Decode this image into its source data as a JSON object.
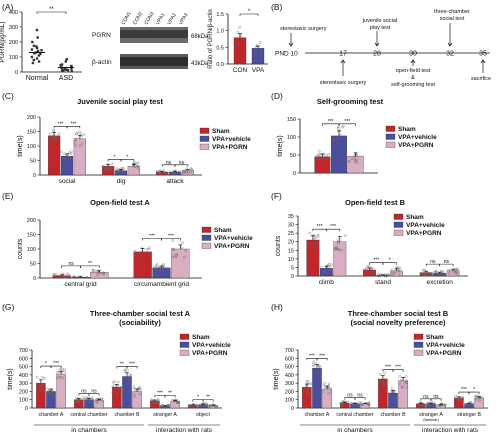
{
  "panels": {
    "A": {
      "letter": "(A)",
      "left_ylabel": "PGRN(pg/mL)",
      "right_ylabel": "Ratio of PGRN/β-actin",
      "blot_lanes": [
        "CON1",
        "CON2",
        "CON3",
        "VPA1",
        "VPA2",
        "VPA3"
      ],
      "blot_rows": [
        {
          "label": "PGRN",
          "kda": "68kDa"
        },
        {
          "label": "β-actin",
          "kda": "43kDa"
        }
      ]
    },
    "B": {
      "letter": "(B)",
      "pnd_label": "PND 10",
      "days": [
        "17",
        "28",
        "30",
        "32",
        "35"
      ],
      "events_top": [
        "stereotaxic surgery",
        "juvenile social play test",
        "three-chamber social test"
      ],
      "events_bottom": [
        "stereotaxic surgery",
        "open-field test & self-grooming test",
        "sacrifice"
      ]
    },
    "C": {
      "letter": "(C)"
    },
    "D": {
      "letter": "(D)"
    },
    "E": {
      "letter": "(E)"
    },
    "F": {
      "letter": "(F)"
    },
    "G": {
      "letter": "(G)",
      "group_labels": [
        "in chambers",
        "interaction with rats"
      ]
    },
    "H": {
      "letter": "(H)",
      "group_labels": [
        "in chambers",
        "interaction with rats"
      ]
    }
  },
  "colors": {
    "sham": "#c0272d",
    "vehicle": "#4b4e9c",
    "pgrn": "#d9aec3",
    "normal": "#333333",
    "asd": "#333333",
    "con": "#c0272d",
    "vpa": "#4b4e9c"
  },
  "chart_data": [
    {
      "panel": "A-left",
      "type": "scatter",
      "categories": [
        "Normal",
        "ASD"
      ],
      "series": [
        {
          "name": "Normal",
          "mean": 130,
          "values": [
            280,
            230,
            200,
            175,
            170,
            160,
            150,
            145,
            140,
            130,
            125,
            120,
            110,
            100,
            90,
            80,
            70,
            60
          ]
        },
        {
          "name": "ASD",
          "mean": 30,
          "values": [
            85,
            70,
            50,
            45,
            40,
            35,
            30,
            25,
            22,
            20,
            18,
            15,
            12,
            10,
            8,
            5
          ]
        }
      ],
      "yticks": [
        0,
        100,
        200,
        300,
        400
      ],
      "ylim": [
        0,
        400
      ],
      "ylabel": "PGRN(pg/mL)",
      "significance": [
        {
          "from": 0,
          "to": 1,
          "label": "**"
        }
      ]
    },
    {
      "panel": "A-right",
      "type": "bar",
      "categories": [
        "CON",
        "VPA"
      ],
      "values": [
        0.79,
        0.47
      ],
      "errors": [
        0.12,
        0.07
      ],
      "points": [
        [
          1.1,
          0.95,
          0.85,
          0.6,
          0.55
        ],
        [
          0.65,
          0.55,
          0.5,
          0.4,
          0.35,
          0.28
        ]
      ],
      "yticks": [
        0,
        0.5,
        1.0,
        1.5
      ],
      "ylim": [
        0,
        1.5
      ],
      "ylabel": "Ratio of PGRN/β-actin",
      "significance": [
        {
          "from": 0,
          "to": 1,
          "label": "*"
        }
      ]
    },
    {
      "panel": "C",
      "type": "bar",
      "title": "Juvenile social play test",
      "ylabel": "time(s)",
      "categories": [
        "social",
        "dig",
        "attack"
      ],
      "series": [
        {
          "name": "Sham",
          "values": [
            135,
            30,
            10
          ],
          "errors": [
            12,
            6,
            3
          ]
        },
        {
          "name": "VPA+vehicle",
          "values": [
            65,
            15,
            10
          ],
          "errors": [
            8,
            4,
            3
          ]
        },
        {
          "name": "VPA+PGRN",
          "values": [
            125,
            30,
            15
          ],
          "errors": [
            12,
            6,
            4
          ]
        }
      ],
      "yticks": [
        0,
        50,
        100,
        150,
        200
      ],
      "ylim": [
        0,
        200
      ],
      "legend": "top-right",
      "significance": [
        {
          "cat": 0,
          "from": 0,
          "to": 1,
          "label": "***"
        },
        {
          "cat": 0,
          "from": 1,
          "to": 2,
          "label": "***"
        },
        {
          "cat": 1,
          "from": 0,
          "to": 1,
          "label": "*"
        },
        {
          "cat": 1,
          "from": 1,
          "to": 2,
          "label": "*"
        },
        {
          "cat": 2,
          "from": 0,
          "to": 1,
          "label": "ns"
        },
        {
          "cat": 2,
          "from": 1,
          "to": 2,
          "label": "ns"
        }
      ]
    },
    {
      "panel": "D",
      "type": "bar",
      "title": "Self-grooming test",
      "ylabel": "time(s)",
      "categories": [
        ""
      ],
      "series": [
        {
          "name": "Sham",
          "values": [
            45
          ],
          "errors": [
            8
          ]
        },
        {
          "name": "VPA+vehicle",
          "values": [
            103
          ],
          "errors": [
            14
          ]
        },
        {
          "name": "VPA+PGRN",
          "values": [
            47
          ],
          "errors": [
            9
          ]
        }
      ],
      "yticks": [
        0,
        50,
        100,
        150
      ],
      "ylim": [
        0,
        150
      ],
      "legend": "top-right",
      "significance": [
        {
          "cat": 0,
          "from": 0,
          "to": 1,
          "label": "***"
        },
        {
          "cat": 0,
          "from": 1,
          "to": 2,
          "label": "***"
        }
      ]
    },
    {
      "panel": "E",
      "type": "bar",
      "title": "Open-field test A",
      "ylabel": "counts",
      "categories": [
        "central grid",
        "circumambient grid"
      ],
      "series": [
        {
          "name": "Sham",
          "values": [
            8,
            90
          ],
          "errors": [
            3,
            12
          ]
        },
        {
          "name": "VPA+vehicle",
          "values": [
            3,
            35
          ],
          "errors": [
            1,
            6
          ]
        },
        {
          "name": "VPA+PGRN",
          "values": [
            20,
            100
          ],
          "errors": [
            5,
            14
          ]
        }
      ],
      "yticks": [
        0,
        50,
        100,
        150,
        200
      ],
      "ylim": [
        0,
        200
      ],
      "legend": "top-right",
      "significance": [
        {
          "cat": 0,
          "from": 0,
          "to": 1,
          "label": "ns"
        },
        {
          "cat": 0,
          "from": 1,
          "to": 2,
          "label": "**"
        },
        {
          "cat": 1,
          "from": 0,
          "to": 1,
          "label": "***"
        },
        {
          "cat": 1,
          "from": 1,
          "to": 2,
          "label": "***"
        }
      ]
    },
    {
      "panel": "F",
      "type": "bar",
      "title": "Open-field test B",
      "ylabel": "counts",
      "categories": [
        "climb",
        "stand",
        "excretion"
      ],
      "series": [
        {
          "name": "Sham",
          "values": [
            21,
            3.5,
            2
          ],
          "errors": [
            2.5,
            1.2,
            0.8
          ]
        },
        {
          "name": "VPA+vehicle",
          "values": [
            4.5,
            0.4,
            1.6
          ],
          "errors": [
            1.2,
            0.3,
            0.6
          ]
        },
        {
          "name": "VPA+PGRN",
          "values": [
            20,
            3,
            3
          ],
          "errors": [
            3,
            1.2,
            1
          ]
        }
      ],
      "yticks": [
        0,
        5,
        10,
        15,
        20,
        25,
        30,
        35
      ],
      "ylim": [
        0,
        35
      ],
      "legend": "top-right",
      "significance": [
        {
          "cat": 0,
          "from": 0,
          "to": 1,
          "label": "***"
        },
        {
          "cat": 0,
          "from": 1,
          "to": 2,
          "label": "***"
        },
        {
          "cat": 1,
          "from": 0,
          "to": 1,
          "label": "***"
        },
        {
          "cat": 1,
          "from": 1,
          "to": 2,
          "label": "*"
        },
        {
          "cat": 2,
          "from": 0,
          "to": 1,
          "label": "ns"
        },
        {
          "cat": 2,
          "from": 1,
          "to": 2,
          "label": "ns"
        }
      ]
    },
    {
      "panel": "G",
      "type": "bar",
      "title": "Three-chamber social test A",
      "subtitle": "(sociability)",
      "ylabel": "time(s)",
      "categories": [
        "chamber A",
        "central chamber",
        "chamber B",
        "stranger A",
        "object"
      ],
      "series": [
        {
          "name": "Sham",
          "values": [
            300,
            100,
            250,
            85,
            35
          ],
          "errors": [
            40,
            15,
            35,
            12,
            6
          ]
        },
        {
          "name": "VPA+vehicle",
          "values": [
            200,
            100,
            380,
            25,
            40
          ],
          "errors": [
            30,
            15,
            45,
            6,
            8
          ]
        },
        {
          "name": "VPA+PGRN",
          "values": [
            410,
            90,
            200,
            80,
            30
          ],
          "errors": [
            30,
            12,
            30,
            12,
            6
          ]
        }
      ],
      "yticks": [
        0,
        100,
        200,
        300,
        400,
        500,
        600,
        700
      ],
      "ylim": [
        0,
        700
      ],
      "legend": "top-right",
      "significance": [
        {
          "cat": 0,
          "from": 0,
          "to": 1,
          "label": "*"
        },
        {
          "cat": 0,
          "from": 1,
          "to": 2,
          "label": "***"
        },
        {
          "cat": 1,
          "from": 0,
          "to": 1,
          "label": "ns"
        },
        {
          "cat": 1,
          "from": 1,
          "to": 2,
          "label": "ns"
        },
        {
          "cat": 2,
          "from": 0,
          "to": 1,
          "label": "**"
        },
        {
          "cat": 2,
          "from": 1,
          "to": 2,
          "label": "***"
        },
        {
          "cat": 3,
          "from": 0,
          "to": 1,
          "label": "***"
        },
        {
          "cat": 3,
          "from": 1,
          "to": 2,
          "label": "**"
        },
        {
          "cat": 4,
          "from": 0,
          "to": 1,
          "label": "*"
        },
        {
          "cat": 4,
          "from": 1,
          "to": 2,
          "label": "**"
        }
      ]
    },
    {
      "panel": "H",
      "type": "bar",
      "title": "Three-chamber social test B",
      "subtitle": "(social novelty preference)",
      "ylabel": "time(s)",
      "categories": [
        "chamber A",
        "central chamber",
        "chamber B",
        "stranger A (familiar)",
        "stranger B"
      ],
      "series": [
        {
          "name": "Sham",
          "values": [
            250,
            60,
            350,
            50,
            120
          ],
          "errors": [
            40,
            10,
            40,
            8,
            15
          ]
        },
        {
          "name": "VPA+vehicle",
          "values": [
            480,
            50,
            180,
            50,
            50
          ],
          "errors": [
            45,
            8,
            30,
            8,
            8
          ]
        },
        {
          "name": "VPA+PGRN",
          "values": [
            230,
            50,
            330,
            40,
            120
          ],
          "errors": [
            35,
            8,
            40,
            6,
            15
          ]
        }
      ],
      "yticks": [
        0,
        100,
        200,
        300,
        400,
        500,
        600,
        700
      ],
      "ylim": [
        0,
        700
      ],
      "legend": "top-right",
      "significance": [
        {
          "cat": 0,
          "from": 0,
          "to": 1,
          "label": "***"
        },
        {
          "cat": 0,
          "from": 1,
          "to": 2,
          "label": "***"
        },
        {
          "cat": 1,
          "from": 0,
          "to": 1,
          "label": "ns"
        },
        {
          "cat": 1,
          "from": 1,
          "to": 2,
          "label": "ns"
        },
        {
          "cat": 2,
          "from": 0,
          "to": 1,
          "label": "***"
        },
        {
          "cat": 2,
          "from": 1,
          "to": 2,
          "label": "***"
        },
        {
          "cat": 3,
          "from": 0,
          "to": 1,
          "label": "ns"
        },
        {
          "cat": 3,
          "from": 1,
          "to": 2,
          "label": "ns"
        },
        {
          "cat": 4,
          "from": 0,
          "to": 1,
          "label": "***"
        },
        {
          "cat": 4,
          "from": 1,
          "to": 2,
          "label": "*"
        }
      ]
    }
  ]
}
